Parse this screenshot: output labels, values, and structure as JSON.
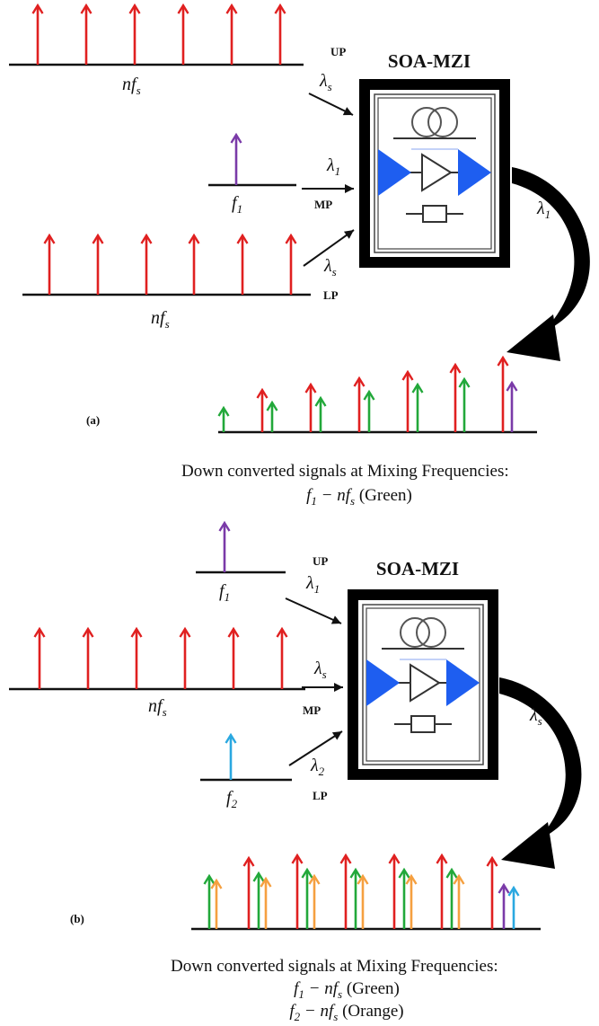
{
  "panel_a": {
    "label": "(a)",
    "title": "SOA-MZI",
    "ports": {
      "up": "UP",
      "mp": "MP",
      "lp": "LP"
    },
    "input_up": {
      "main": "nf",
      "sub": "s",
      "arrow": "λ",
      "arrow_sub": "s"
    },
    "input_mp": {
      "main": "f",
      "sub": "1",
      "arrow": "λ",
      "arrow_sub": "1"
    },
    "input_lp": {
      "main": "nf",
      "sub": "s",
      "arrow": "λ",
      "arrow_sub": "s"
    },
    "output": {
      "arrow": "λ",
      "arrow_sub": "1"
    },
    "caption_line1": "Down converted signals at Mixing Frequencies:",
    "caption_line2": {
      "a": "f",
      "a_sub": "1",
      "mid": " − nf",
      "b_sub": "s",
      "rest": " (Green)"
    }
  },
  "panel_b": {
    "label": "(b)",
    "title": "SOA-MZI",
    "ports": {
      "up": "UP",
      "mp": "MP",
      "lp": "LP"
    },
    "input_up": {
      "main": "f",
      "sub": "1",
      "arrow": "λ",
      "arrow_sub": "1"
    },
    "input_mp": {
      "main": "nf",
      "sub": "s",
      "arrow": "λ",
      "arrow_sub": "s"
    },
    "input_lp": {
      "main": "f",
      "sub": "2",
      "arrow": "λ",
      "arrow_sub": "2"
    },
    "output": {
      "arrow": "λ",
      "arrow_sub": "s"
    },
    "caption_line1": "Down converted signals at Mixing Frequencies:",
    "caption_line2": {
      "a": "f",
      "a_sub": "1",
      "mid": " − nf",
      "b_sub": "s",
      "rest": " (Green)"
    },
    "caption_line3": {
      "a": "f",
      "a_sub": "2",
      "mid": " − nf",
      "b_sub": "s",
      "rest": " (Orange)"
    }
  },
  "colors": {
    "red": "#e02020",
    "green": "#22a83a",
    "purple": "#7a3aa8",
    "cyan": "#2aa8e0",
    "orange": "#f5a040",
    "blue": "#1e5ef0",
    "black": "#000000"
  },
  "icons": [
    "fiber-coil-icon",
    "amplifier-triangle-icon",
    "filter-box-icon",
    "blue-arrow-icon"
  ]
}
